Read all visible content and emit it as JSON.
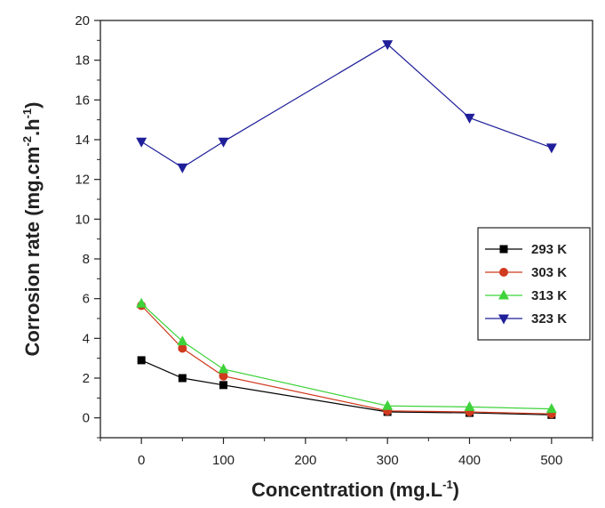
{
  "chart_data": {
    "type": "line",
    "xlabel": "Concentration (mg.L",
    "xlabel_sup": "-1",
    "xlabel_end": ")",
    "ylabel_parts": [
      "Corrosion rate (mg.cm",
      "-2",
      ".h",
      "-1",
      ")"
    ],
    "xlim": [
      -50,
      550
    ],
    "ylim": [
      -1,
      20
    ],
    "xticks": [
      0,
      100,
      200,
      300,
      400,
      500
    ],
    "yticks": [
      0,
      2,
      4,
      6,
      8,
      10,
      12,
      14,
      16,
      18,
      20
    ],
    "x": [
      0,
      50,
      100,
      300,
      400,
      500
    ],
    "grid": false,
    "legend_position": "center-right",
    "series": [
      {
        "name": "293 K",
        "values": [
          2.9,
          2.0,
          1.65,
          0.3,
          0.25,
          0.15
        ],
        "color": "#000000",
        "marker": "square"
      },
      {
        "name": "303 K",
        "values": [
          5.65,
          3.5,
          2.1,
          0.35,
          0.3,
          0.2
        ],
        "color": "#d03a1e",
        "marker": "circle"
      },
      {
        "name": "313 K",
        "values": [
          5.75,
          3.85,
          2.45,
          0.6,
          0.55,
          0.45
        ],
        "color": "#3ed33a",
        "marker": "triangle-up"
      },
      {
        "name": "323 K",
        "values": [
          13.9,
          12.6,
          13.9,
          18.8,
          15.1,
          13.6
        ],
        "color": "#1f1f9a",
        "marker": "triangle-down"
      }
    ]
  }
}
